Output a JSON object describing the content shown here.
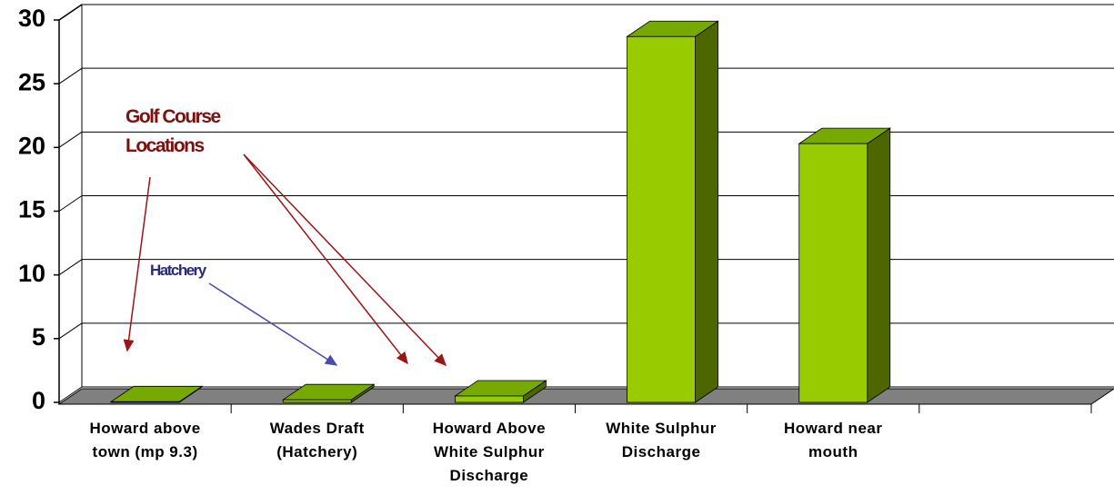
{
  "chart_data": {
    "type": "bar",
    "categories": [
      "Howard above\ntown (mp 9.3)",
      "Wades Draft\n(Hatchery)",
      "Howard Above\nWhite Sulphur\nDischarge",
      "White Sulphur\nDischarge",
      "Howard near\nmouth",
      null
    ],
    "values": [
      0.05,
      0.2,
      0.5,
      28.7,
      20.3,
      null
    ],
    "colors": {
      "front": "#99cc00",
      "top": "#77aa00",
      "side": "#4d6600"
    },
    "ylim": [
      0,
      30
    ],
    "yticks": [
      0,
      5,
      10,
      15,
      20,
      25,
      30
    ],
    "grid": true,
    "annotations": [
      {
        "text": "Golf Course\nLocations"
      },
      {
        "text": "Hatchery"
      }
    ]
  }
}
